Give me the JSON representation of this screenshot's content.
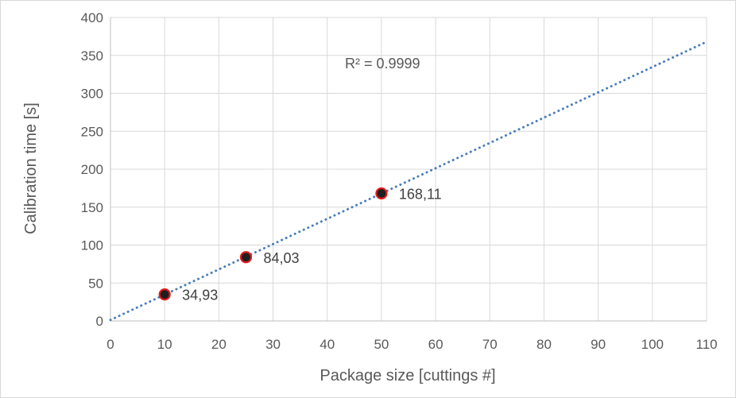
{
  "chart_data": {
    "type": "scatter",
    "title": "",
    "xlabel": "Package size [cuttings #]",
    "ylabel": "Calibration time [s]",
    "xlim": [
      0,
      110
    ],
    "ylim": [
      0,
      400
    ],
    "xticks": [
      0,
      10,
      20,
      30,
      40,
      50,
      60,
      70,
      80,
      90,
      100,
      110
    ],
    "yticks": [
      0,
      50,
      100,
      150,
      200,
      250,
      300,
      350,
      400
    ],
    "grid": true,
    "legend": "none",
    "points": [
      {
        "x": 10,
        "y": 34.93,
        "label": "34,93"
      },
      {
        "x": 25,
        "y": 84.03,
        "label": "84,03"
      },
      {
        "x": 50,
        "y": 168.11,
        "label": "168,11"
      }
    ],
    "trendline": {
      "type": "linear",
      "style": "dotted",
      "x_range": [
        0,
        110
      ],
      "y_at_start": 1.3,
      "y_at_end": 368,
      "r_squared_label": "R² = 0.9999"
    },
    "colors": {
      "trendline": "#4a7ebb",
      "marker_outline": "#e31a1c",
      "marker_fill": "#1f1f1f",
      "grid": "#d9d9d9",
      "text": "#595959"
    }
  }
}
